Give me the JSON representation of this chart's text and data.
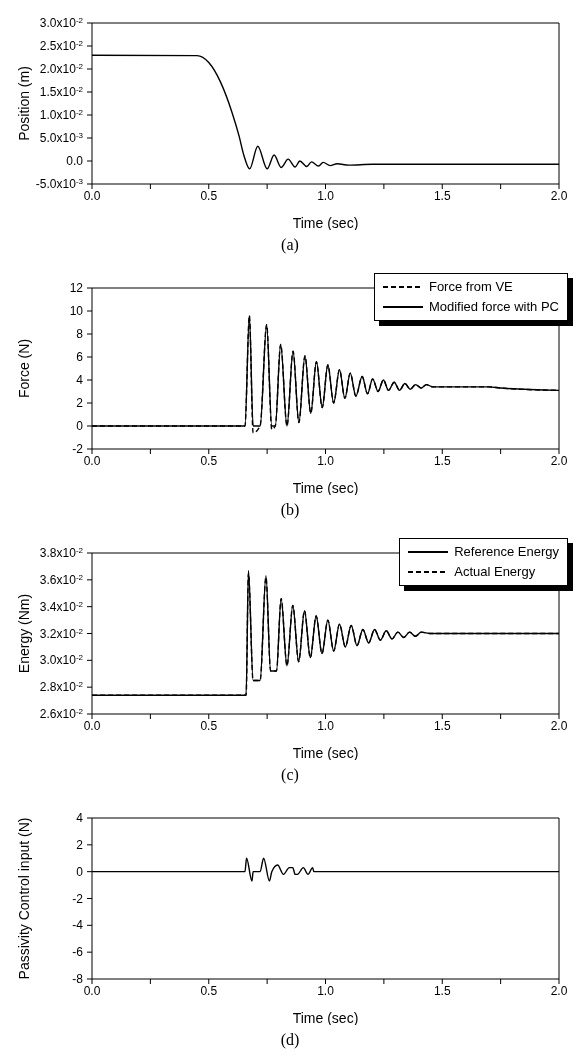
{
  "chart_data": [
    {
      "type": "line",
      "xlabel": "Time (sec)",
      "ylabel": "Position (m)",
      "annotations": [
        "(a)"
      ],
      "x": [
        0,
        0.45,
        0.5,
        0.55,
        0.6,
        0.63,
        0.65,
        0.675,
        0.71,
        0.75,
        0.78,
        0.81,
        0.84,
        0.87,
        0.89,
        0.92,
        0.94,
        0.97,
        0.99,
        1.02,
        1.05,
        1.1,
        1.2,
        1.5,
        2.0
      ],
      "series": [
        {
          "color": "#000000",
          "line_style": "solid",
          "values": [
            0.023,
            0.0229,
            0.0214,
            0.0172,
            0.0105,
            0.0054,
            0.0013,
            -0.0017,
            0.0032,
            -0.0017,
            0.0013,
            -0.0014,
            0.0004,
            -0.0013,
            0,
            -0.0012,
            -0.0002,
            -0.0011,
            -0.0003,
            -0.001,
            -0.0006,
            -0.0009,
            -0.0007,
            -0.0007,
            -0.0007
          ]
        }
      ],
      "xlim": [
        0,
        2
      ],
      "xticks": [
        {
          "value": 0,
          "label": "0.0"
        },
        {
          "value": 0.25,
          "label": null
        },
        {
          "value": 0.5,
          "label": "0.5"
        },
        {
          "value": 0.75,
          "label": null
        },
        {
          "value": 1,
          "label": "1.0"
        },
        {
          "value": 1.25,
          "label": null
        },
        {
          "value": 1.5,
          "label": "1.5"
        },
        {
          "value": 1.75,
          "label": null
        },
        {
          "value": 2,
          "label": "2.0"
        }
      ],
      "ylim": [
        -0.005,
        0.03
      ],
      "yticks": [
        {
          "value": -0.005,
          "label": "-5.0x10$^{-3}$"
        },
        {
          "value": 0,
          "label": "0.0"
        },
        {
          "value": 0.005,
          "label": "5.0x10$^{-3}$"
        },
        {
          "value": 0.01,
          "label": "1.0x10$^{-2}$"
        },
        {
          "value": 0.015,
          "label": "1.5x10$^{-2}$"
        },
        {
          "value": 0.02,
          "label": "2.0x10$^{-2}$"
        },
        {
          "value": 0.025,
          "label": "2.5x10$^{-2}$"
        },
        {
          "value": 0.03,
          "label": "3.0x10$^{-2}$"
        }
      ]
    },
    {
      "type": "line",
      "xlabel": "Time (sec)",
      "ylabel": "Force (N)",
      "annotations": [
        "(b)"
      ],
      "legend": "top right",
      "x": [
        0,
        0.655,
        0.674,
        0.69,
        0.72,
        0.748,
        0.77,
        0.785,
        0.808,
        0.835,
        0.861,
        0.886,
        0.912,
        0.937,
        0.961,
        0.986,
        1.01,
        1.035,
        1.06,
        1.083,
        1.106,
        1.13,
        1.157,
        1.18,
        1.202,
        1.225,
        1.248,
        1.27,
        1.294,
        1.317,
        1.34,
        1.363,
        1.386,
        1.41,
        1.432,
        1.46,
        1.7,
        1.75,
        2.0
      ],
      "series": [
        {
          "name": "Force from VE",
          "color": "#000000",
          "line_style": "dashed",
          "values": [
            0,
            0,
            9.6,
            -0.6,
            0,
            8.8,
            -0.3,
            0,
            7.1,
            0,
            6.5,
            0.3,
            6.1,
            1.1,
            5.6,
            1.6,
            5.3,
            2.0,
            4.9,
            2.4,
            4.6,
            2.6,
            4.3,
            2.8,
            4.1,
            3.0,
            4.0,
            3.1,
            3.8,
            3.1,
            3.7,
            3.2,
            3.6,
            3.3,
            3.6,
            3.4,
            3.4,
            3.3,
            3.1
          ]
        },
        {
          "name": "Modified force with PC",
          "color": "#000000",
          "line_style": "solid",
          "values": [
            0,
            0,
            9.6,
            0,
            0,
            8.8,
            0,
            0,
            7.1,
            0,
            6.5,
            0.3,
            6.1,
            1.1,
            5.6,
            1.6,
            5.3,
            2.0,
            4.9,
            2.4,
            4.6,
            2.6,
            4.3,
            2.8,
            4.1,
            3.0,
            4.0,
            3.1,
            3.8,
            3.1,
            3.7,
            3.2,
            3.6,
            3.3,
            3.6,
            3.4,
            3.4,
            3.3,
            3.1
          ]
        }
      ],
      "xlim": [
        0,
        2
      ],
      "xticks": [
        {
          "value": 0,
          "label": "0.0"
        },
        {
          "value": 0.25,
          "label": null
        },
        {
          "value": 0.5,
          "label": "0.5"
        },
        {
          "value": 0.75,
          "label": null
        },
        {
          "value": 1,
          "label": "1.0"
        },
        {
          "value": 1.25,
          "label": null
        },
        {
          "value": 1.5,
          "label": "1.5"
        },
        {
          "value": 1.75,
          "label": null
        },
        {
          "value": 2,
          "label": "2.0"
        }
      ],
      "ylim": [
        -2,
        12
      ],
      "yticks": [
        -2,
        0,
        2,
        4,
        6,
        8,
        10,
        12
      ]
    },
    {
      "type": "line",
      "xlabel": "Time (sec)",
      "ylabel": "Energy (Nm)",
      "annotations": [
        "(c)"
      ],
      "legend": "top right",
      "x": [
        0,
        0.66,
        0.67,
        0.69,
        0.72,
        0.745,
        0.765,
        0.79,
        0.81,
        0.835,
        0.86,
        0.885,
        0.91,
        0.935,
        0.96,
        0.985,
        1.01,
        1.035,
        1.06,
        1.085,
        1.11,
        1.135,
        1.16,
        1.185,
        1.21,
        1.235,
        1.26,
        1.285,
        1.31,
        1.335,
        1.36,
        1.385,
        1.41,
        1.45,
        2.0
      ],
      "series": [
        {
          "name": "Reference Energy",
          "color": "#000000",
          "line_style": "solid",
          "values": [
            0.0274,
            0.0274,
            0.0367,
            0.0285,
            0.0285,
            0.0363,
            0.0292,
            0.0292,
            0.0346,
            0.0296,
            0.0341,
            0.0299,
            0.0337,
            0.0302,
            0.0333,
            0.0305,
            0.033,
            0.0307,
            0.0327,
            0.031,
            0.0326,
            0.0311,
            0.0323,
            0.0313,
            0.0323,
            0.0315,
            0.0322,
            0.0316,
            0.0321,
            0.0317,
            0.0321,
            0.0318,
            0.0321,
            0.032,
            0.032
          ]
        },
        {
          "name": "Actual Energy",
          "color": "#000000",
          "line_style": "dashed",
          "values": [
            0.0274,
            0.0274,
            0.0365,
            0.0285,
            0.0285,
            0.0362,
            0.0292,
            0.0292,
            0.0346,
            0.0296,
            0.0341,
            0.0299,
            0.0337,
            0.0302,
            0.0333,
            0.0305,
            0.033,
            0.0307,
            0.0327,
            0.031,
            0.0326,
            0.0311,
            0.0323,
            0.0313,
            0.0323,
            0.0315,
            0.0322,
            0.0316,
            0.0321,
            0.0317,
            0.0321,
            0.0318,
            0.0321,
            0.032,
            0.032
          ]
        }
      ],
      "xlim": [
        0,
        2
      ],
      "xticks": [
        {
          "value": 0,
          "label": "0.0"
        },
        {
          "value": 0.25,
          "label": null
        },
        {
          "value": 0.5,
          "label": "0.5"
        },
        {
          "value": 0.75,
          "label": null
        },
        {
          "value": 1,
          "label": "1.0"
        },
        {
          "value": 1.25,
          "label": null
        },
        {
          "value": 1.5,
          "label": "1.5"
        },
        {
          "value": 1.75,
          "label": null
        },
        {
          "value": 2,
          "label": "2.0"
        }
      ],
      "ylim": [
        0.026,
        0.038
      ],
      "yticks": [
        {
          "value": 0.026,
          "label": "2.6x10$^{-2}$"
        },
        {
          "value": 0.028,
          "label": "2.8x10$^{-2}$"
        },
        {
          "value": 0.03,
          "label": "3.0x10$^{-2}$"
        },
        {
          "value": 0.032,
          "label": "3.2x10$^{-2}$"
        },
        {
          "value": 0.034,
          "label": "3.4x10$^{-2}$"
        },
        {
          "value": 0.036,
          "label": "3.6x10$^{-2}$"
        },
        {
          "value": 0.038,
          "label": "3.8x10$^{-2}$"
        }
      ]
    },
    {
      "type": "line",
      "xlabel": "Time (sec)",
      "ylabel": "Passivity Control input (N)",
      "annotations": [
        "(d)"
      ],
      "x": [
        0,
        0.655,
        0.662,
        0.685,
        0.69,
        0.72,
        0.735,
        0.76,
        0.77,
        0.795,
        0.82,
        0.845,
        0.86,
        0.87,
        0.88,
        0.905,
        0.925,
        0.945,
        0.95,
        2.0
      ],
      "series": [
        {
          "color": "#000000",
          "line_style": "solid",
          "values": [
            0,
            0,
            1.0,
            -0.7,
            0,
            0,
            1.0,
            -0.7,
            0,
            0.5,
            -0.2,
            0.3,
            0.3,
            -0.2,
            -0.2,
            0.3,
            -0.2,
            0.3,
            0,
            0
          ]
        }
      ],
      "xlim": [
        0,
        2
      ],
      "xticks": [
        {
          "value": 0,
          "label": "0.0"
        },
        {
          "value": 0.25,
          "label": null
        },
        {
          "value": 0.5,
          "label": "0.5"
        },
        {
          "value": 0.75,
          "label": null
        },
        {
          "value": 1,
          "label": "1.0"
        },
        {
          "value": 1.25,
          "label": null
        },
        {
          "value": 1.5,
          "label": "1.5"
        },
        {
          "value": 1.75,
          "label": null
        },
        {
          "value": 2,
          "label": "2.0"
        }
      ],
      "ylim": [
        -8,
        4
      ],
      "yticks": [
        -8,
        -6,
        -4,
        -2,
        0,
        2,
        4
      ]
    }
  ]
}
